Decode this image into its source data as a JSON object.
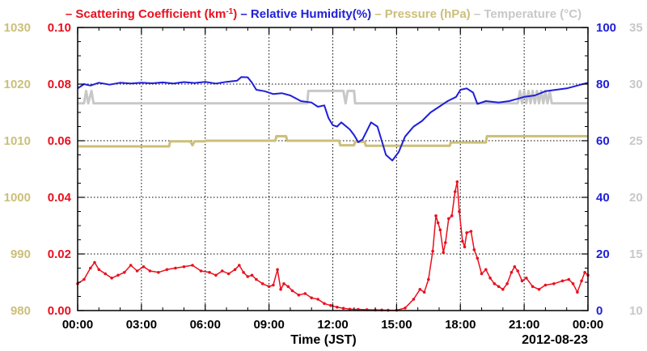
{
  "chart_data": {
    "type": "line",
    "legend": {
      "position": "top",
      "items": [
        {
          "key": "scattering",
          "dash": "–",
          "label": "Scattering Coefficient (km",
          "sup": "-1",
          "tail": ")",
          "color": "#e8101e"
        },
        {
          "key": "humidity",
          "dash": "–",
          "label": "Relative Humidity(%)",
          "color": "#1f1fd8"
        },
        {
          "key": "pressure",
          "dash": "–",
          "label": "Pressure (hPa)",
          "color": "#cbbf7a"
        },
        {
          "key": "temperature",
          "dash": "–",
          "label": "Temperature (",
          "glyph": "°",
          "tail": "C)",
          "color": "#c8c8c8"
        }
      ]
    },
    "xlabel": "Time (JST)",
    "date_label": "2012-08-23",
    "x_ticks": [
      "00:00",
      "03:00",
      "06:00",
      "09:00",
      "12:00",
      "15:00",
      "18:00",
      "21:00",
      "00:00"
    ],
    "x_range_hours": [
      0,
      24
    ],
    "grid": true,
    "axes": {
      "pressure": {
        "side": "left-outer",
        "ticks": [
          "980",
          "990",
          "1000",
          "1010",
          "1020",
          "1030"
        ],
        "range": [
          980,
          1030
        ],
        "color": "#cbbf7a"
      },
      "scattering": {
        "side": "left-inner",
        "ticks": [
          "0.00",
          "0.02",
          "0.04",
          "0.06",
          "0.08",
          "0.10"
        ],
        "range": [
          0,
          0.1
        ],
        "color": "#e8101e"
      },
      "humidity": {
        "side": "right-inner",
        "ticks": [
          "0",
          "20",
          "40",
          "60",
          "80",
          "100"
        ],
        "range": [
          0,
          100
        ],
        "color": "#1f1fd8"
      },
      "temperature": {
        "side": "right-outer",
        "ticks": [
          "10",
          "15",
          "20",
          "25",
          "30",
          "35"
        ],
        "range": [
          10,
          35
        ],
        "color": "#c8c8c8"
      }
    },
    "series": [
      {
        "key": "scattering",
        "color": "#e8101e",
        "markers": true,
        "points": [
          [
            0,
            0.0095
          ],
          [
            0.3,
            0.011
          ],
          [
            0.6,
            0.015
          ],
          [
            0.8,
            0.017
          ],
          [
            1.0,
            0.0145
          ],
          [
            1.3,
            0.013
          ],
          [
            1.6,
            0.0115
          ],
          [
            1.9,
            0.0125
          ],
          [
            2.2,
            0.0135
          ],
          [
            2.5,
            0.016
          ],
          [
            2.8,
            0.014
          ],
          [
            3.1,
            0.0155
          ],
          [
            3.4,
            0.014
          ],
          [
            3.8,
            0.0135
          ],
          [
            4.2,
            0.0145
          ],
          [
            4.6,
            0.015
          ],
          [
            5.0,
            0.0155
          ],
          [
            5.4,
            0.016
          ],
          [
            5.8,
            0.014
          ],
          [
            6.2,
            0.0135
          ],
          [
            6.5,
            0.0125
          ],
          [
            6.8,
            0.014
          ],
          [
            7.1,
            0.013
          ],
          [
            7.4,
            0.0145
          ],
          [
            7.6,
            0.016
          ],
          [
            7.8,
            0.0135
          ],
          [
            8.0,
            0.012
          ],
          [
            8.2,
            0.0125
          ],
          [
            8.4,
            0.011
          ],
          [
            8.7,
            0.0095
          ],
          [
            9.0,
            0.0085
          ],
          [
            9.2,
            0.009
          ],
          [
            9.4,
            0.0145
          ],
          [
            9.55,
            0.0075
          ],
          [
            9.7,
            0.0095
          ],
          [
            9.9,
            0.0085
          ],
          [
            10.1,
            0.007
          ],
          [
            10.4,
            0.0055
          ],
          [
            10.7,
            0.006
          ],
          [
            11.0,
            0.0045
          ],
          [
            11.3,
            0.004
          ],
          [
            11.6,
            0.0025
          ],
          [
            11.9,
            0.0018
          ],
          [
            12.2,
            0.0012
          ],
          [
            12.5,
            0.0008
          ],
          [
            12.8,
            0.0005
          ],
          [
            13.2,
            0.0004
          ],
          [
            13.6,
            0.0003
          ],
          [
            14.0,
            0.0002
          ],
          [
            14.3,
            0.0002
          ],
          [
            14.6,
            0.0001
          ],
          [
            15.0,
            0.0001
          ],
          [
            15.4,
            0.0009
          ],
          [
            15.8,
            0.004
          ],
          [
            16.1,
            0.0075
          ],
          [
            16.3,
            0.0065
          ],
          [
            16.5,
            0.011
          ],
          [
            16.7,
            0.021
          ],
          [
            16.85,
            0.0335
          ],
          [
            16.95,
            0.031
          ],
          [
            17.05,
            0.0285
          ],
          [
            17.2,
            0.0205
          ],
          [
            17.3,
            0.024
          ],
          [
            17.45,
            0.0325
          ],
          [
            17.6,
            0.0335
          ],
          [
            17.75,
            0.042
          ],
          [
            17.85,
            0.0455
          ],
          [
            17.95,
            0.035
          ],
          [
            18.1,
            0.0245
          ],
          [
            18.2,
            0.0225
          ],
          [
            18.3,
            0.0275
          ],
          [
            18.5,
            0.028
          ],
          [
            18.65,
            0.0215
          ],
          [
            18.8,
            0.0185
          ],
          [
            19.0,
            0.013
          ],
          [
            19.2,
            0.0145
          ],
          [
            19.4,
            0.0115
          ],
          [
            19.6,
            0.0095
          ],
          [
            19.8,
            0.0085
          ],
          [
            20.0,
            0.0075
          ],
          [
            20.2,
            0.0095
          ],
          [
            20.4,
            0.0135
          ],
          [
            20.55,
            0.0155
          ],
          [
            20.7,
            0.014
          ],
          [
            20.9,
            0.0105
          ],
          [
            21.1,
            0.0115
          ],
          [
            21.4,
            0.0085
          ],
          [
            21.7,
            0.0075
          ],
          [
            22.0,
            0.009
          ],
          [
            22.4,
            0.0095
          ],
          [
            22.8,
            0.0105
          ],
          [
            23.1,
            0.011
          ],
          [
            23.3,
            0.0095
          ],
          [
            23.5,
            0.0065
          ],
          [
            23.7,
            0.0105
          ],
          [
            23.85,
            0.0135
          ],
          [
            24.0,
            0.0125
          ]
        ]
      },
      {
        "key": "humidity",
        "color": "#1f1fd8",
        "markers": false,
        "points": [
          [
            0,
            78.5
          ],
          [
            0.3,
            80
          ],
          [
            0.6,
            79.5
          ],
          [
            1.0,
            80.5
          ],
          [
            1.5,
            79.8
          ],
          [
            2.0,
            80.5
          ],
          [
            2.5,
            80.2
          ],
          [
            3.0,
            80.5
          ],
          [
            3.5,
            80.3
          ],
          [
            4.0,
            80.6
          ],
          [
            4.5,
            80.2
          ],
          [
            5.0,
            80.7
          ],
          [
            5.5,
            80.4
          ],
          [
            6.0,
            80.8
          ],
          [
            6.5,
            80.2
          ],
          [
            7.0,
            80.8
          ],
          [
            7.5,
            81.2
          ],
          [
            7.7,
            82.5
          ],
          [
            8.0,
            82.4
          ],
          [
            8.2,
            80.5
          ],
          [
            8.4,
            78
          ],
          [
            8.8,
            77.5
          ],
          [
            9.2,
            76.5
          ],
          [
            9.6,
            76.8
          ],
          [
            10.0,
            76
          ],
          [
            10.5,
            74
          ],
          [
            11.0,
            73.5
          ],
          [
            11.3,
            72
          ],
          [
            11.6,
            72.5
          ],
          [
            11.8,
            68
          ],
          [
            12.0,
            65.5
          ],
          [
            12.2,
            65
          ],
          [
            12.4,
            66.5
          ],
          [
            12.8,
            64
          ],
          [
            13.0,
            62
          ],
          [
            13.2,
            59.5
          ],
          [
            13.4,
            60.5
          ],
          [
            13.6,
            63.5
          ],
          [
            13.8,
            66.5
          ],
          [
            14.1,
            65
          ],
          [
            14.3,
            60
          ],
          [
            14.5,
            55
          ],
          [
            14.8,
            53
          ],
          [
            15.1,
            56
          ],
          [
            15.4,
            61.5
          ],
          [
            15.8,
            65
          ],
          [
            16.2,
            67
          ],
          [
            16.6,
            70
          ],
          [
            17.0,
            72
          ],
          [
            17.4,
            74
          ],
          [
            17.8,
            75.5
          ],
          [
            18.0,
            78
          ],
          [
            18.3,
            78.5
          ],
          [
            18.6,
            77
          ],
          [
            18.8,
            73
          ],
          [
            19.2,
            74
          ],
          [
            19.8,
            73.5
          ],
          [
            20.3,
            74
          ],
          [
            21.0,
            75.5
          ],
          [
            21.5,
            76
          ],
          [
            22.0,
            77.5
          ],
          [
            22.5,
            78
          ],
          [
            23.0,
            78.5
          ],
          [
            23.5,
            79.5
          ],
          [
            24.0,
            80.5
          ]
        ]
      },
      {
        "key": "pressure",
        "color": "#cbbf7a",
        "markers": false,
        "points": [
          [
            0,
            1009
          ],
          [
            4.3,
            1009
          ],
          [
            4.35,
            1009.9
          ],
          [
            5.3,
            1009.9
          ],
          [
            5.4,
            1009.2
          ],
          [
            5.5,
            1009.9
          ],
          [
            6.0,
            1009.9
          ],
          [
            6.05,
            1010
          ],
          [
            9.3,
            1010
          ],
          [
            9.35,
            1010.8
          ],
          [
            9.8,
            1010.8
          ],
          [
            9.85,
            1010
          ],
          [
            12.3,
            1010
          ],
          [
            12.35,
            1009.2
          ],
          [
            13.0,
            1009.2
          ],
          [
            13.05,
            1009.8
          ],
          [
            13.5,
            1009.8
          ],
          [
            13.55,
            1009.1
          ],
          [
            17.5,
            1009.1
          ],
          [
            17.55,
            1009.7
          ],
          [
            19.2,
            1009.7
          ],
          [
            19.25,
            1010.8
          ],
          [
            24,
            1010.8
          ]
        ]
      },
      {
        "key": "temperature",
        "color": "#c8c8c8",
        "markers": false,
        "points": [
          [
            0,
            28.3
          ],
          [
            0.3,
            28.3
          ],
          [
            0.4,
            29.4
          ],
          [
            0.5,
            28.3
          ],
          [
            0.65,
            29.4
          ],
          [
            0.75,
            28.3
          ],
          [
            10.8,
            28.3
          ],
          [
            10.85,
            29.4
          ],
          [
            12.5,
            29.4
          ],
          [
            12.6,
            28.3
          ],
          [
            12.7,
            29.4
          ],
          [
            13.0,
            29.4
          ],
          [
            13.05,
            28.3
          ],
          [
            20.7,
            28.3
          ],
          [
            20.8,
            29.4
          ],
          [
            20.9,
            28.3
          ],
          [
            21.0,
            29.4
          ],
          [
            21.1,
            28.3
          ],
          [
            21.2,
            29.4
          ],
          [
            21.3,
            28.3
          ],
          [
            21.4,
            29.4
          ],
          [
            21.5,
            28.3
          ],
          [
            21.6,
            29.4
          ],
          [
            21.7,
            28.3
          ],
          [
            21.8,
            29.4
          ],
          [
            21.9,
            28.3
          ],
          [
            22.0,
            29.4
          ],
          [
            22.1,
            28.3
          ],
          [
            22.2,
            29.4
          ],
          [
            22.3,
            28.3
          ],
          [
            24,
            28.3
          ]
        ]
      }
    ]
  }
}
